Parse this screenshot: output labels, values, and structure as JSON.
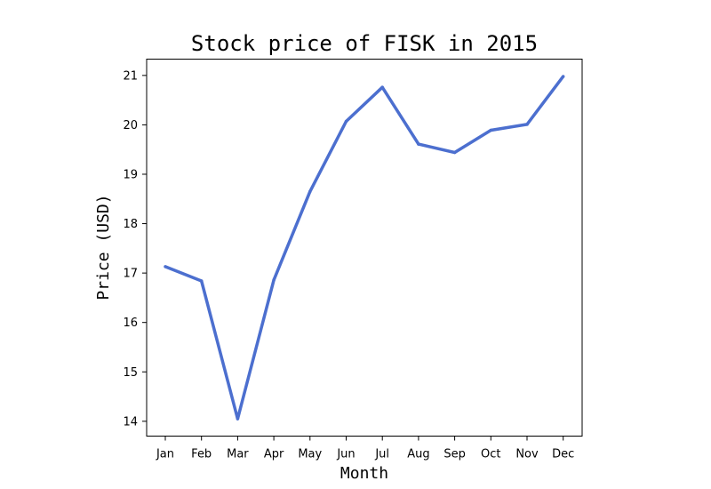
{
  "chart_data": {
    "type": "line",
    "title": "Stock price of FISK in 2015",
    "xlabel": "Month",
    "ylabel": "Price (USD)",
    "categories": [
      "Jan",
      "Feb",
      "Mar",
      "Apr",
      "May",
      "Jun",
      "Jul",
      "Aug",
      "Sep",
      "Oct",
      "Nov",
      "Dec"
    ],
    "series": [
      {
        "values": [
          17.13,
          16.84,
          14.05,
          16.86,
          18.65,
          20.07,
          20.76,
          19.61,
          19.44,
          19.89,
          20.01,
          20.98
        ],
        "color": "#4c6fcf"
      }
    ],
    "yticks": [
      14,
      15,
      16,
      17,
      18,
      19,
      20,
      21
    ],
    "ylim": [
      13.7,
      21.33
    ],
    "grid": false,
    "legend": "none"
  }
}
